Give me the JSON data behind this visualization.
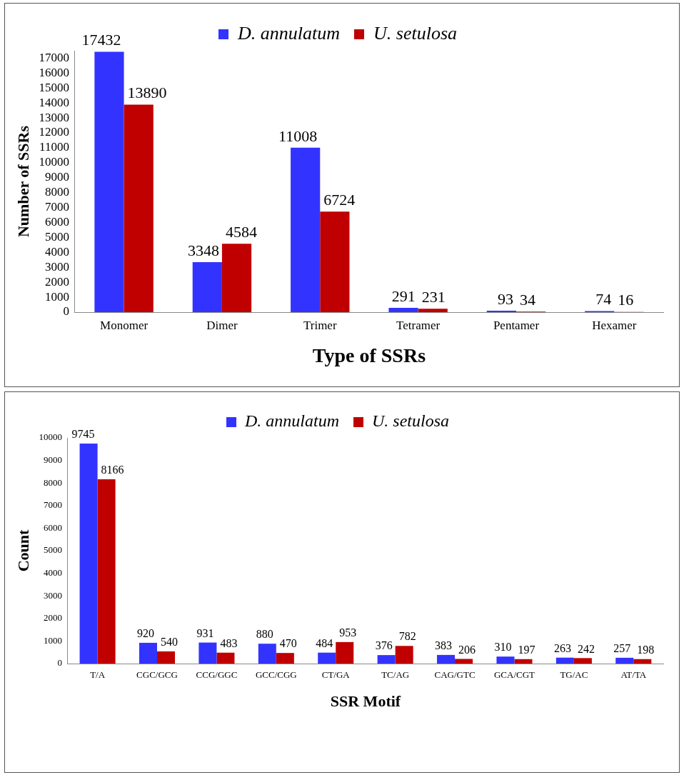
{
  "chart_data": [
    {
      "type": "bar",
      "xlabel": "Type of SSRs",
      "ylabel": "Number of SSRs",
      "categories": [
        "Monomer",
        "Dimer",
        "Trimer",
        "Tetramer",
        "Pentamer",
        "Hexamer"
      ],
      "series": [
        {
          "name": "D. annulatum",
          "color": "#3333ff",
          "values": [
            17432,
            3348,
            11008,
            291,
            93,
            74
          ]
        },
        {
          "name": "U. setulosa",
          "color": "#c00000",
          "values": [
            13890,
            4584,
            6724,
            231,
            34,
            16
          ]
        }
      ],
      "ylim": [
        0,
        17500
      ],
      "yticks": [
        0,
        1000,
        2000,
        3000,
        4000,
        5000,
        6000,
        7000,
        8000,
        9000,
        10000,
        11000,
        12000,
        13000,
        14000,
        15000,
        16000,
        17000
      ],
      "grid": false,
      "legend": "top",
      "data_labels": true
    },
    {
      "type": "bar",
      "xlabel": "SSR Motif",
      "ylabel": "Count",
      "categories": [
        "T/A",
        "CGC/GCG",
        "CCG/GGC",
        "GCC/CGG",
        "CT/GA",
        "TC/AG",
        "CAG/GTC",
        "GCA/CGT",
        "TG/AC",
        "AT/TA"
      ],
      "series": [
        {
          "name": "D. annulatum",
          "color": "#3333ff",
          "values": [
            9745,
            920,
            931,
            880,
            484,
            376,
            383,
            310,
            263,
            257
          ]
        },
        {
          "name": "U. setulosa",
          "color": "#c00000",
          "values": [
            8166,
            540,
            483,
            470,
            953,
            782,
            206,
            197,
            242,
            198
          ]
        }
      ],
      "ylim": [
        0,
        10000
      ],
      "yticks": [
        0,
        1000,
        2000,
        3000,
        4000,
        5000,
        6000,
        7000,
        8000,
        9000,
        10000
      ],
      "grid": false,
      "legend": "top",
      "data_labels": true
    }
  ]
}
